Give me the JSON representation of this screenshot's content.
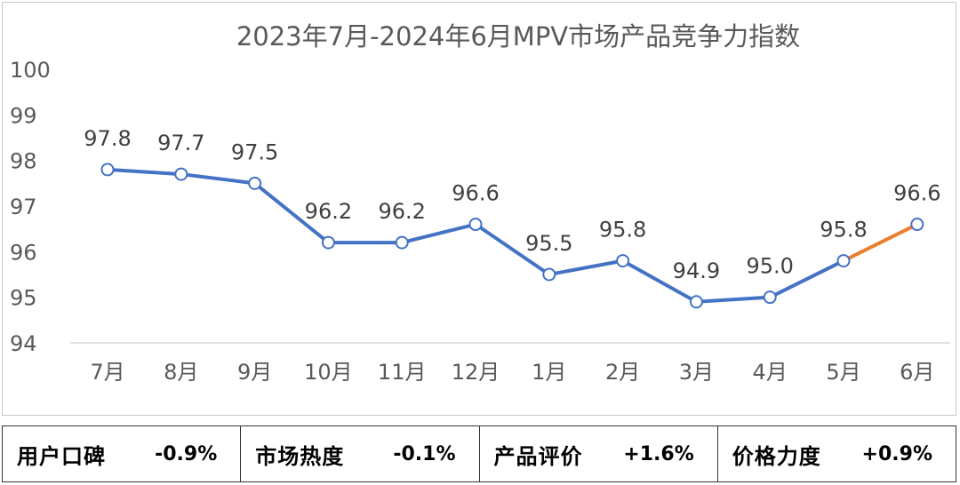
{
  "chart_data": {
    "type": "line",
    "title": "2023年7月-2024年6月MPV市场产品竞争力指数",
    "categories": [
      "7月",
      "8月",
      "9月",
      "10月",
      "11月",
      "12月",
      "1月",
      "2月",
      "3月",
      "4月",
      "5月",
      "6月"
    ],
    "values": [
      97.8,
      97.7,
      97.5,
      96.2,
      96.2,
      96.6,
      95.5,
      95.8,
      94.9,
      95.0,
      95.8,
      96.6
    ],
    "data_labels": [
      "97.8",
      "97.7",
      "97.5",
      "96.2",
      "96.2",
      "96.6",
      "95.5",
      "95.8",
      "94.9",
      "95.0",
      "95.8",
      "96.6"
    ],
    "ylim": [
      94,
      100
    ],
    "yticks": [
      "94",
      "95",
      "96",
      "97",
      "98",
      "99",
      "100"
    ],
    "xlabel": "",
    "ylabel": "",
    "series_color": "#4472c4",
    "highlight_color": "#ed7d31",
    "highlight_last_segment": true
  },
  "metrics": [
    {
      "label": "用户口碑",
      "value": "-0.9%"
    },
    {
      "label": "市场热度",
      "value": "-0.1%"
    },
    {
      "label": "产品评价",
      "value": "+1.6%"
    },
    {
      "label": "价格力度",
      "value": "+0.9%"
    }
  ]
}
